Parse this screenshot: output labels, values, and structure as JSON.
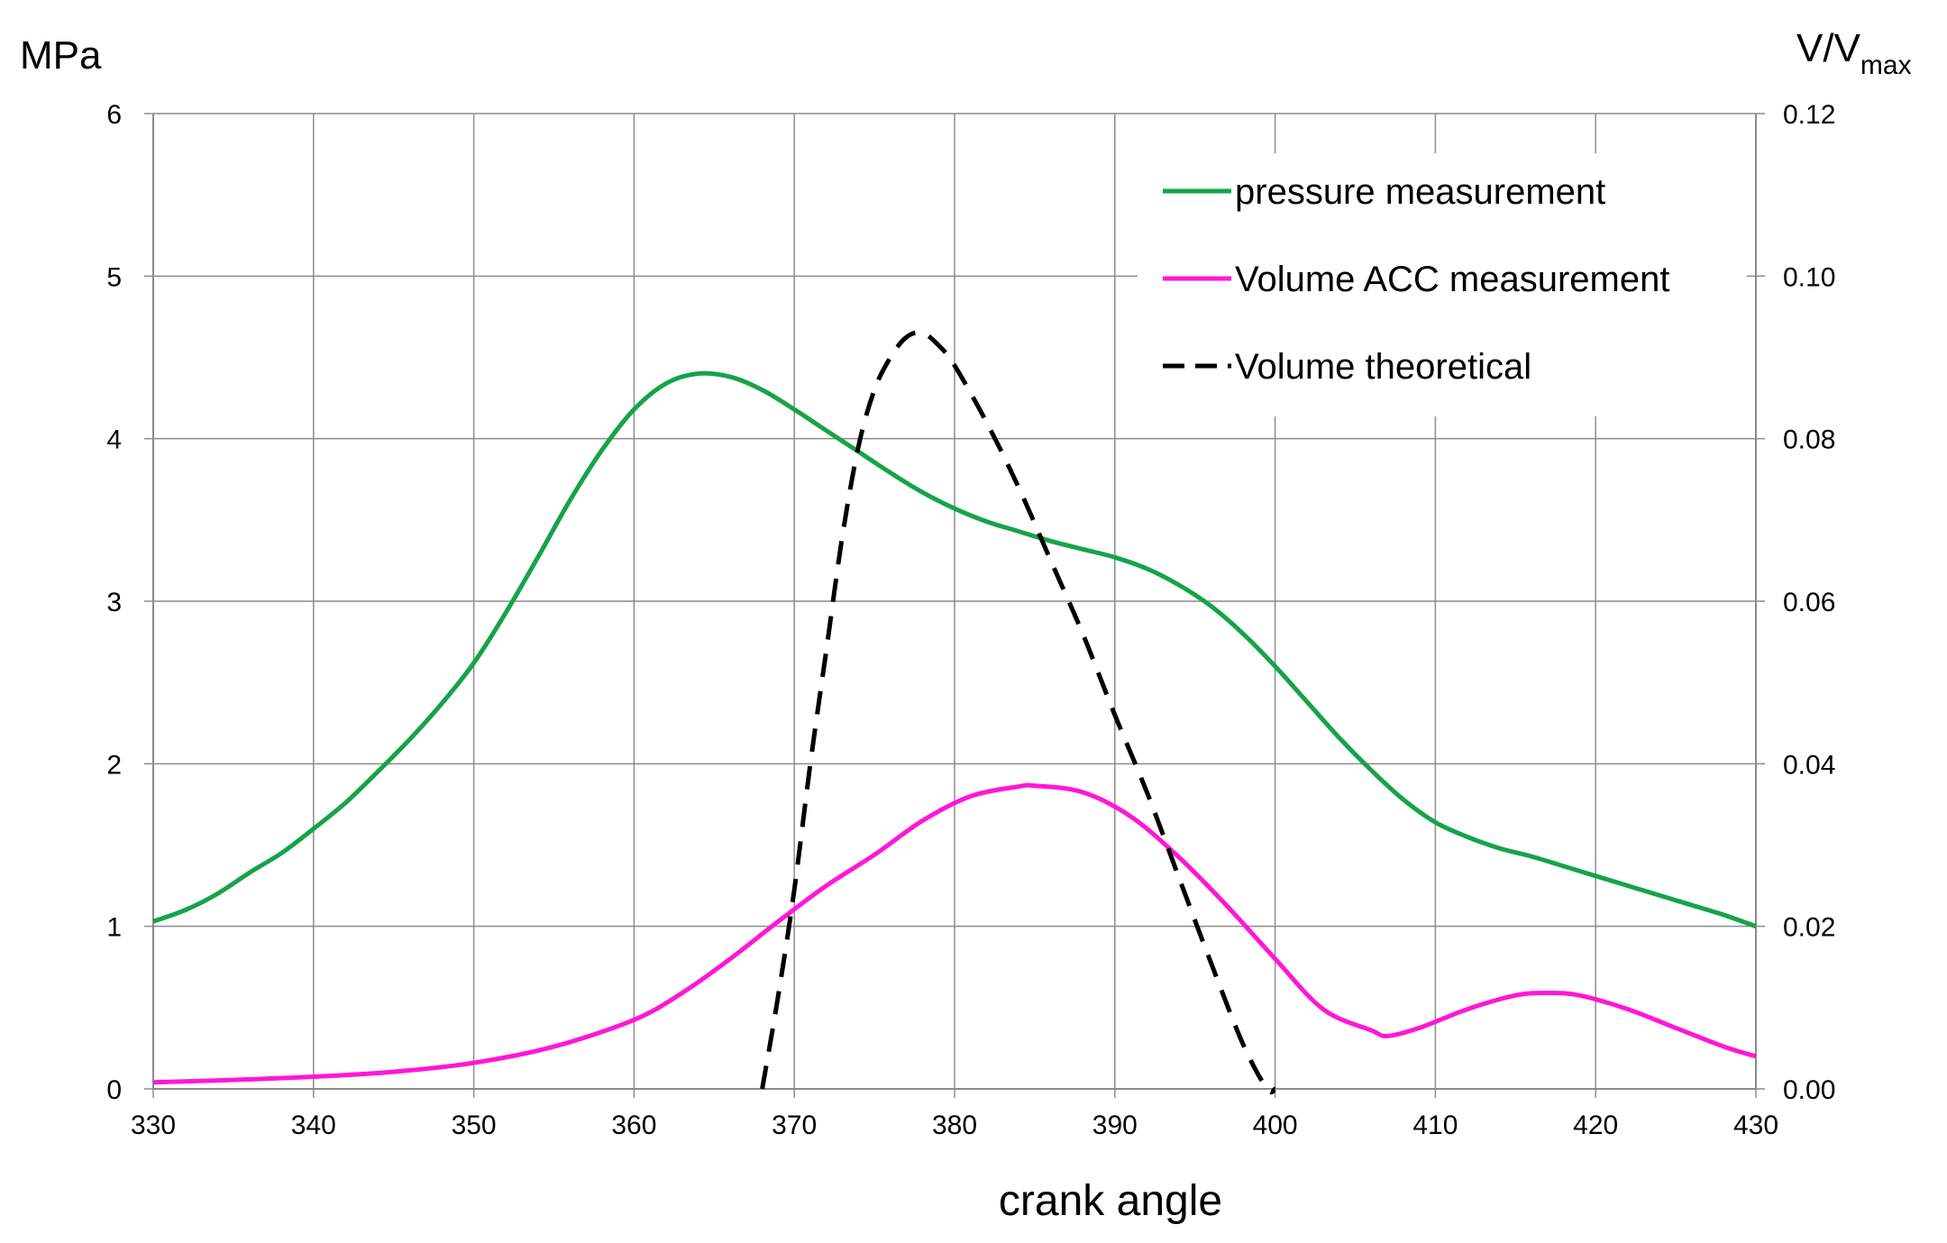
{
  "chart_data": {
    "type": "line",
    "title": "",
    "xlabel": "crank angle",
    "ylabel_left": "MPa",
    "ylabel_right": "V/V",
    "ylabel_right_sub": "max",
    "xlim": [
      330,
      430
    ],
    "ylim_left": [
      0,
      6
    ],
    "ylim_right": [
      0,
      0.12
    ],
    "x_ticks": [
      "330",
      "340",
      "350",
      "360",
      "370",
      "380",
      "390",
      "400",
      "410",
      "420",
      "430"
    ],
    "y_left_ticks": [
      "0",
      "1",
      "2",
      "3",
      "4",
      "5",
      "6"
    ],
    "y_right_ticks": [
      "0.00",
      "0.02",
      "0.04",
      "0.06",
      "0.08",
      "0.10",
      "0.12"
    ],
    "grid": true,
    "legend_position": "top-right",
    "series": [
      {
        "name": "pressure measurement",
        "axis": "left",
        "color": "#16a34a",
        "dash": "solid",
        "x": [
          330,
          332,
          334,
          336,
          338,
          340,
          342,
          344,
          346,
          348,
          350,
          352,
          354,
          356,
          358,
          360,
          362,
          364,
          366,
          368,
          370,
          372,
          374,
          376,
          378,
          380,
          382,
          384,
          386,
          388,
          390,
          392,
          394,
          396,
          398,
          400,
          402,
          404,
          406,
          408,
          410,
          412,
          414,
          416,
          418,
          420,
          422,
          424,
          426,
          428,
          430
        ],
        "y": [
          1.03,
          1.1,
          1.2,
          1.33,
          1.45,
          1.6,
          1.76,
          1.95,
          2.15,
          2.37,
          2.62,
          2.93,
          3.27,
          3.62,
          3.93,
          4.18,
          4.34,
          4.4,
          4.38,
          4.3,
          4.18,
          4.05,
          3.92,
          3.79,
          3.67,
          3.57,
          3.49,
          3.43,
          3.37,
          3.32,
          3.27,
          3.2,
          3.1,
          2.97,
          2.8,
          2.6,
          2.38,
          2.16,
          1.96,
          1.78,
          1.64,
          1.55,
          1.48,
          1.43,
          1.37,
          1.31,
          1.25,
          1.19,
          1.13,
          1.07,
          1.0
        ]
      },
      {
        "name": "Volume ACC measurement",
        "axis": "right",
        "color": "#ff17d6",
        "dash": "solid",
        "x": [
          330,
          335,
          340,
          345,
          350,
          355,
          360,
          363,
          366,
          369,
          372,
          375,
          378,
          381,
          384,
          385,
          388,
          391,
          394,
          397,
          400,
          403,
          406,
          407,
          409,
          412,
          415,
          417,
          419,
          422,
          425,
          428,
          430
        ],
        "y": [
          0.0008,
          0.0011,
          0.0015,
          0.0021,
          0.0032,
          0.0052,
          0.0085,
          0.0118,
          0.016,
          0.0206,
          0.025,
          0.0288,
          0.033,
          0.036,
          0.0372,
          0.0373,
          0.0365,
          0.0335,
          0.0285,
          0.0225,
          0.016,
          0.0098,
          0.0072,
          0.0065,
          0.0075,
          0.0098,
          0.0115,
          0.0118,
          0.0115,
          0.0098,
          0.0075,
          0.0052,
          0.004
        ]
      },
      {
        "name": "Volume theoretical",
        "axis": "right",
        "color": "#000000",
        "dash": "dashed",
        "x": [
          368,
          369,
          370,
          371,
          372,
          373,
          374,
          375,
          376,
          377,
          378,
          379,
          380,
          382,
          384,
          386,
          388,
          390,
          392,
          394,
          396,
          398,
          399.5,
          400
        ],
        "y": [
          0.0,
          0.0115,
          0.0245,
          0.04,
          0.054,
          0.068,
          0.079,
          0.086,
          0.09,
          0.0925,
          0.093,
          0.0915,
          0.089,
          0.082,
          0.074,
          0.065,
          0.056,
          0.046,
          0.0365,
          0.026,
          0.0155,
          0.0055,
          0.0,
          0.0
        ]
      }
    ]
  }
}
